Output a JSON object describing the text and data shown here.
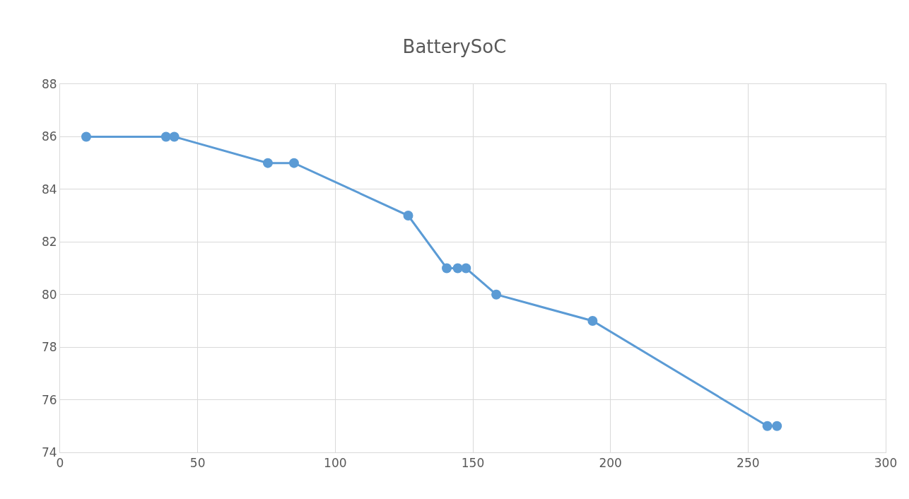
{
  "chart_data": {
    "type": "line",
    "title": "BatterySoC",
    "x": [
      9.5,
      38.5,
      41.5,
      75.5,
      85,
      126.5,
      140.5,
      144.5,
      147.5,
      158.5,
      193.5,
      257,
      260.5
    ],
    "series": [
      {
        "color": "#5b9bd5",
        "values": [
          86,
          86,
          86,
          85,
          85,
          83,
          81,
          81,
          81,
          80,
          79,
          75,
          75
        ]
      }
    ],
    "xlim": [
      0,
      300
    ],
    "xticks": [
      0,
      50,
      100,
      150,
      200,
      250,
      300
    ],
    "ylim": [
      74,
      88
    ],
    "yticks": [
      74,
      76,
      78,
      80,
      82,
      84,
      86,
      88
    ],
    "grid": true,
    "marker": "circle",
    "line_style": "solid"
  }
}
